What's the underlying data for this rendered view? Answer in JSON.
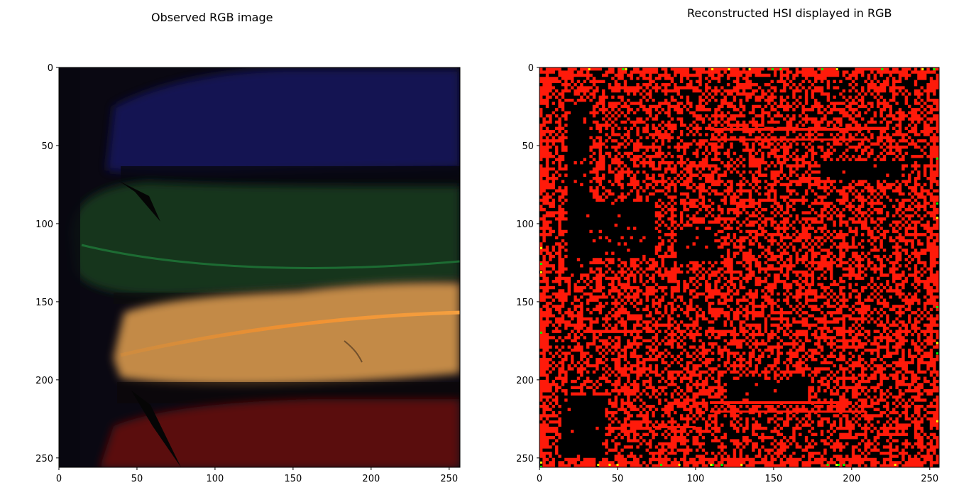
{
  "chart_data": [
    {
      "type": "image",
      "title": "Observed RGB image",
      "xlabel": "",
      "ylabel": "",
      "xlim": [
        0,
        256
      ],
      "ylim": [
        256,
        0
      ],
      "xticks": [
        0,
        50,
        100,
        150,
        200,
        250
      ],
      "yticks": [
        0,
        50,
        100,
        150,
        200,
        250
      ],
      "xtick_labels": [
        "0",
        "50",
        "100",
        "150",
        "200",
        "250"
      ],
      "ytick_labels": [
        "0",
        "50",
        "100",
        "150",
        "200",
        "250"
      ],
      "grid": false,
      "content": {
        "background": "#0a0812",
        "regions": [
          {
            "label": "blue feather",
            "rows": [
              0,
              68
            ],
            "color": "#15155a"
          },
          {
            "label": "green feather",
            "rows": [
              70,
              145
            ],
            "color": "#12361f"
          },
          {
            "label": "orange feather",
            "rows": [
              140,
              205
            ],
            "color": "#c38a46"
          },
          {
            "label": "red feather",
            "rows": [
              210,
              256
            ],
            "color": "#5a0d0d"
          }
        ]
      }
    },
    {
      "type": "image",
      "title": "Reconstructed HSI displayed in RGB",
      "xlabel": "",
      "ylabel": "",
      "xlim": [
        0,
        256
      ],
      "ylim": [
        256,
        0
      ],
      "xticks": [
        0,
        50,
        100,
        150,
        200,
        250
      ],
      "yticks": [
        0,
        50,
        100,
        150,
        200,
        250
      ],
      "xtick_labels": [
        "0",
        "50",
        "100",
        "150",
        "200",
        "250"
      ],
      "ytick_labels": [
        "0",
        "50",
        "100",
        "150",
        "200",
        "250"
      ],
      "grid": false,
      "content": {
        "background": "#000000",
        "pattern": "red checkerboard noise",
        "pattern_color": "#ff1a0a",
        "edge_colors": [
          "#00ff00",
          "#ffff00"
        ]
      }
    }
  ]
}
